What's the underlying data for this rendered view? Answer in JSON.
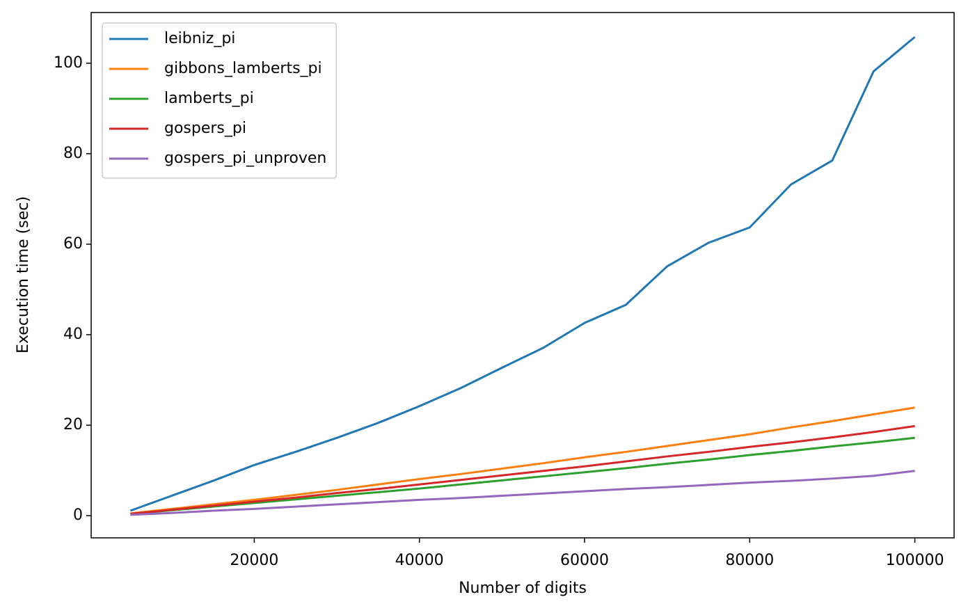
{
  "chart_data": {
    "type": "line",
    "x_label": "Number of digits",
    "y_label": "Execution time (sec)",
    "x": [
      5000,
      10000,
      15000,
      20000,
      25000,
      30000,
      35000,
      40000,
      45000,
      50000,
      55000,
      60000,
      65000,
      70000,
      75000,
      80000,
      85000,
      90000,
      95000,
      100000
    ],
    "series": [
      {
        "name": "leibniz_pi",
        "color": "#1f77b4",
        "values": [
          1.1,
          4.4,
          7.7,
          11.2,
          14.1,
          17.2,
          20.5,
          24.2,
          28.2,
          32.7,
          37.1,
          42.6,
          46.6,
          55.1,
          60.3,
          63.7,
          73.2,
          78.5,
          98.2,
          105.8
        ]
      },
      {
        "name": "gibbons_lamberts_pi",
        "color": "#ff7f0e",
        "values": [
          0.5,
          1.5,
          2.5,
          3.5,
          4.6,
          5.7,
          6.9,
          8.1,
          9.2,
          10.4,
          11.6,
          12.9,
          14.1,
          15.4,
          16.7,
          18.0,
          19.5,
          20.9,
          22.4,
          23.9
        ]
      },
      {
        "name": "lamberts_pi",
        "color": "#2ca02c",
        "values": [
          0.4,
          1.2,
          2.0,
          2.8,
          3.6,
          4.4,
          5.2,
          6.0,
          6.9,
          7.8,
          8.7,
          9.6,
          10.5,
          11.5,
          12.4,
          13.4,
          14.3,
          15.3,
          16.2,
          17.2
        ]
      },
      {
        "name": "gospers_pi",
        "color": "#d62728",
        "values": [
          0.4,
          1.3,
          2.2,
          3.1,
          4.0,
          5.0,
          5.9,
          6.9,
          7.9,
          8.9,
          9.9,
          10.9,
          12.0,
          13.1,
          14.1,
          15.2,
          16.2,
          17.3,
          18.5,
          19.8
        ]
      },
      {
        "name": "gospers_pi_unproven",
        "color": "#9467bd",
        "values": [
          0.2,
          0.6,
          1.1,
          1.5,
          2.0,
          2.5,
          3.0,
          3.5,
          3.9,
          4.4,
          4.9,
          5.4,
          5.9,
          6.3,
          6.8,
          7.3,
          7.7,
          8.2,
          8.8,
          9.9
        ]
      }
    ],
    "xlim": [
      250,
      104750
    ],
    "ylim": [
      -4.9,
      111.2
    ],
    "xticks": [
      20000,
      40000,
      60000,
      80000,
      100000
    ],
    "yticks": [
      0,
      20,
      40,
      60,
      80,
      100
    ],
    "legend": "upper left"
  }
}
